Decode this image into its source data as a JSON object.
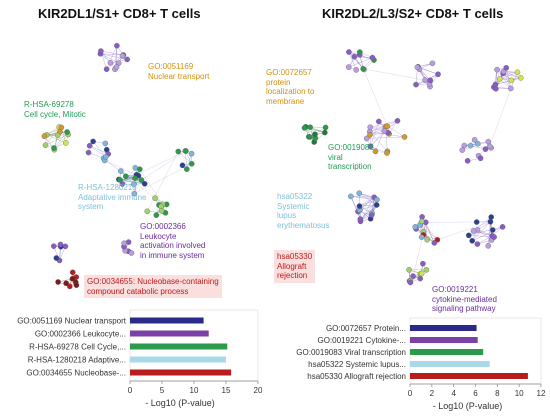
{
  "panels": {
    "left": {
      "title": "KIR2DL1/S1+ CD8+ T cells",
      "annotations": [
        {
          "lines": [
            "GO:0051169",
            "Nuclear transport"
          ],
          "color": "#d4900a"
        },
        {
          "lines": [
            "R-HSA-69278",
            "Cell cycle, Mitotic"
          ],
          "color": "#1f9a55"
        },
        {
          "lines": [
            "R-HSA-1280218",
            "Adaptative immune",
            "system"
          ],
          "color": "#7fc0d8"
        },
        {
          "lines": [
            "GO:0002366",
            "Leukocyte",
            "activation involved",
            "in immune system"
          ],
          "color": "#6a2c9a"
        },
        {
          "lines": [
            "GO:0034655: Nucleobase-containing",
            "compound catabolic process"
          ],
          "color": "#b81c1c",
          "bg": "#fbdede"
        }
      ]
    },
    "right": {
      "title": "KIR2DL2/L3/S2+ CD8+ T cells",
      "annotations": [
        {
          "lines": [
            "GO:0072657",
            "protein",
            "localization to",
            "membrane"
          ],
          "color": "#d4900a"
        },
        {
          "lines": [
            "GO:0019083",
            "viral",
            "transcription"
          ],
          "color": "#1f9a55"
        },
        {
          "lines": [
            "hsa05322",
            "Systemic",
            "lupus",
            "erythematosus"
          ],
          "color": "#7fc0d8"
        },
        {
          "lines": [
            "hsa05330",
            "Allograft",
            "rejection"
          ],
          "color": "#b81c1c",
          "bg": "#fbdede"
        },
        {
          "lines": [
            "GO:0019221",
            "cytokine-mediated",
            "signaling pathway"
          ],
          "color": "#6a2c9a"
        }
      ]
    }
  },
  "chart_data": [
    {
      "type": "bar",
      "orientation": "horizontal",
      "categories": [
        "GO:0051169 Nuclear transport",
        "GO:0002366 Leukocyte...",
        "R-HSA-69278 Cell Cycle,...",
        "R-HSA-1280218 Adaptive...",
        "GO:0034655 Nucleobase-..."
      ],
      "values": [
        11.5,
        12.3,
        15.2,
        15.0,
        15.8
      ],
      "colors": [
        "#2a2a8a",
        "#7b3fa6",
        "#2c9a4b",
        "#a9d8ea",
        "#b81c1c"
      ],
      "xlabel": "- Log10 (P-value)",
      "xlim": [
        0,
        20
      ],
      "xticks": [
        0,
        5,
        10,
        15,
        20
      ]
    },
    {
      "type": "bar",
      "orientation": "horizontal",
      "categories": [
        "GO:0072657 Protein...",
        "GO:0019221 Cytokine-...",
        "GO:0019083 Viral transcription",
        "hsa05322 Systemic lupus...",
        "hsa05330 Allograft rejection"
      ],
      "values": [
        6.1,
        6.2,
        6.7,
        7.3,
        10.8
      ],
      "colors": [
        "#2a2a8a",
        "#7b3fa6",
        "#2c9a4b",
        "#a9d8ea",
        "#b81c1c"
      ],
      "xlabel": "- Log10 (P-value)",
      "xlim": [
        0,
        12
      ],
      "xticks": [
        0,
        2,
        4,
        6,
        8,
        10,
        12
      ]
    }
  ]
}
